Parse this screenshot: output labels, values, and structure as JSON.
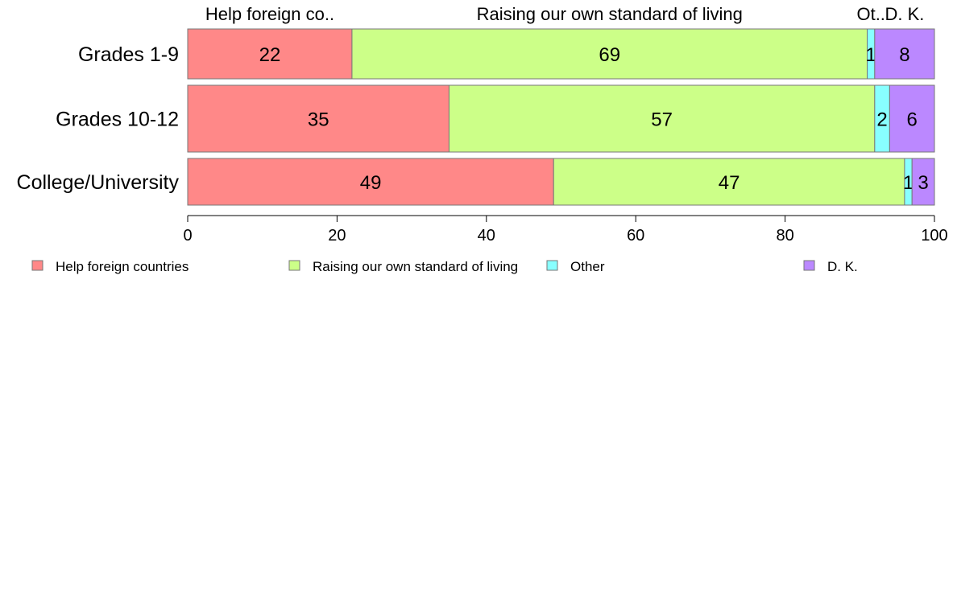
{
  "chart_data": {
    "type": "bar",
    "orientation": "horizontal",
    "stacked": true,
    "categories": [
      "Grades 1-9",
      "Grades 10-12",
      "College/University"
    ],
    "series": [
      {
        "name": "Help foreign countries",
        "header_label": "Help foreign co..",
        "color": "#ff8888",
        "values": [
          22,
          35,
          49
        ]
      },
      {
        "name": "Raising our own standard of living",
        "header_label": "Raising our own standard of living",
        "color": "#ccff88",
        "values": [
          69,
          57,
          47
        ]
      },
      {
        "name": "Other",
        "header_label": "Ot..",
        "color": "#88ffff",
        "values": [
          1,
          2,
          1
        ]
      },
      {
        "name": "D. K.",
        "header_label": "D. K.",
        "color": "#bb88ff",
        "values": [
          8,
          6,
          3
        ]
      }
    ],
    "xlim": [
      0,
      100
    ],
    "xticks": [
      0,
      20,
      40,
      60,
      80,
      100
    ],
    "grid": false,
    "legend_position": "bottom"
  }
}
